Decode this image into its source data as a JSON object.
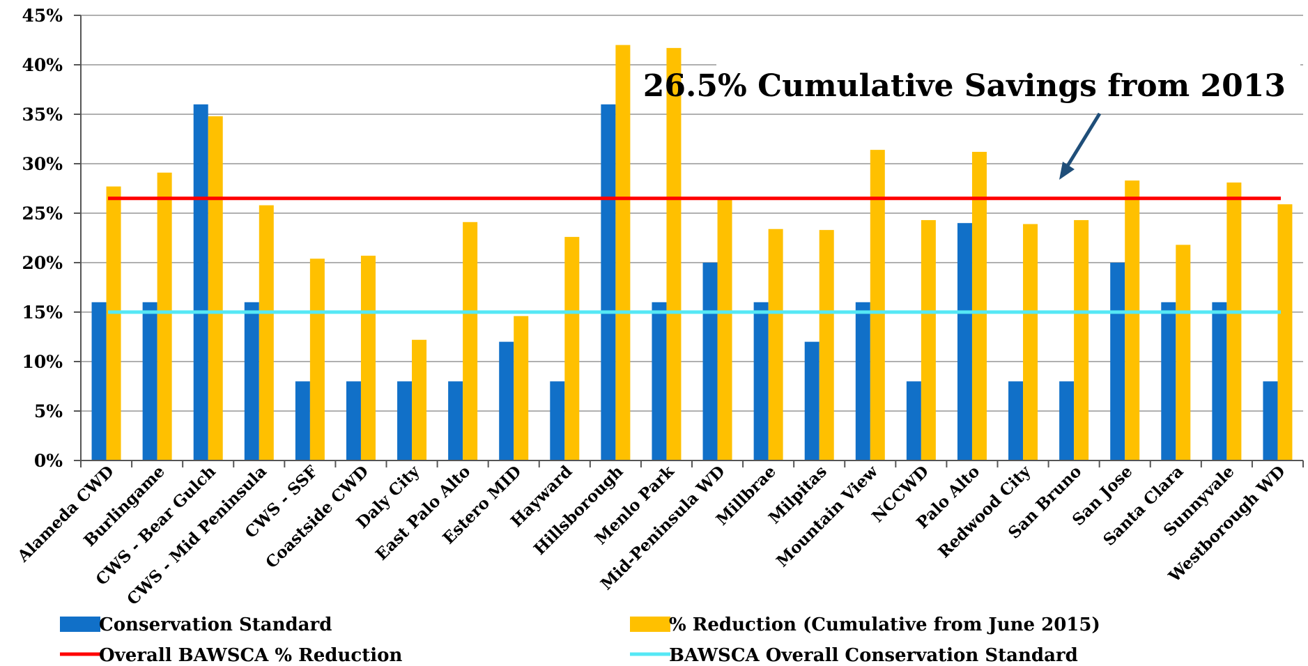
{
  "chart_data": {
    "type": "bar",
    "title": "",
    "xlabel": "",
    "ylabel": "",
    "ylim": [
      0,
      45
    ],
    "y_ticks": [
      "0%",
      "5%",
      "10%",
      "15%",
      "20%",
      "25%",
      "30%",
      "35%",
      "40%",
      "45%"
    ],
    "categories": [
      "Alameda CWD",
      "Burlingame",
      "CWS - Bear Gulch",
      "CWS - Mid Peninsula",
      "CWS - SSF",
      "Coastside CWD",
      "Daly City",
      "East Palo Alto",
      "Estero MID",
      "Hayward",
      "Hillsborough",
      "Menlo Park",
      "Mid-Peninsula WD",
      "Millbrae",
      "Milpitas",
      "Mountain View",
      "NCCWD",
      "Palo Alto",
      "Redwood City",
      "San Bruno",
      "San Jose",
      "Santa Clara",
      "Sunnyvale",
      "Westborough WD"
    ],
    "series": [
      {
        "name": "Conservation Standard",
        "color": "#1170c8",
        "values": [
          16,
          16,
          36,
          16,
          8,
          8,
          8,
          8,
          12,
          8,
          36,
          16,
          20,
          16,
          12,
          16,
          8,
          24,
          8,
          8,
          20,
          16,
          16,
          8
        ]
      },
      {
        "name": "% Reduction (Cumulative from June 2015)",
        "color": "#ffc000",
        "values": [
          27.7,
          29.1,
          34.8,
          25.8,
          20.4,
          20.7,
          12.2,
          24.1,
          14.6,
          22.6,
          42.0,
          41.7,
          26.5,
          23.4,
          23.3,
          31.4,
          24.3,
          31.2,
          23.9,
          24.3,
          28.3,
          21.8,
          28.1,
          25.9
        ]
      }
    ],
    "reference_lines": [
      {
        "name": "Overall BAWSCA % Reduction",
        "value": 26.5,
        "color": "#ff0000"
      },
      {
        "name": "BAWSCA Overall Conservation Standard",
        "value": 15,
        "color": "#55e8f5"
      }
    ],
    "annotation": "26.5% Cumulative Savings from 2013",
    "grid": true,
    "legend": "bottom"
  }
}
